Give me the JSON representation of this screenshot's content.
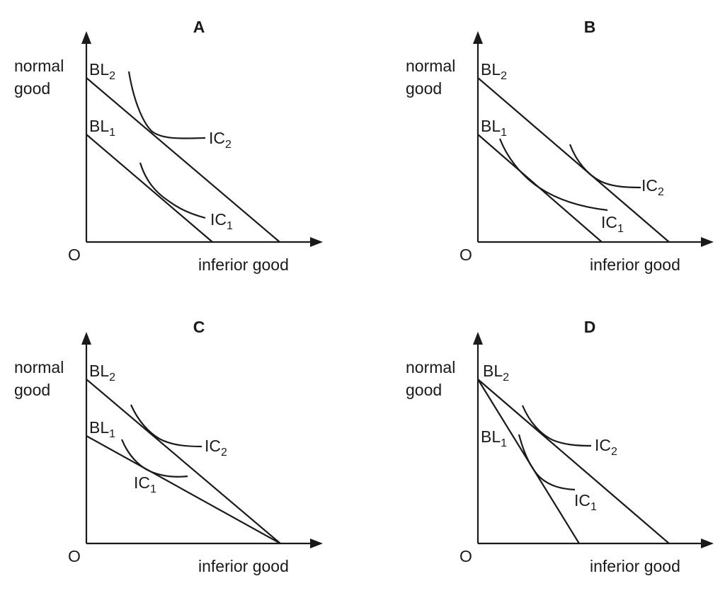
{
  "panels": [
    {
      "title": "A",
      "y_axis_label": [
        "normal",
        "good"
      ],
      "x_axis_label": "inferior good",
      "origin_label": "O",
      "budget_lines": [
        {
          "base": "BL",
          "sub": "2"
        },
        {
          "base": "BL",
          "sub": "1"
        }
      ],
      "indifference_curves": [
        {
          "base": "IC",
          "sub": "2"
        },
        {
          "base": "IC",
          "sub": "1"
        }
      ]
    },
    {
      "title": "B",
      "y_axis_label": [
        "normal",
        "good"
      ],
      "x_axis_label": "inferior good",
      "origin_label": "O",
      "budget_lines": [
        {
          "base": "BL",
          "sub": "2"
        },
        {
          "base": "BL",
          "sub": "1"
        }
      ],
      "indifference_curves": [
        {
          "base": "IC",
          "sub": "2"
        },
        {
          "base": "IC",
          "sub": "1"
        }
      ]
    },
    {
      "title": "C",
      "y_axis_label": [
        "normal",
        "good"
      ],
      "x_axis_label": "inferior good",
      "origin_label": "O",
      "budget_lines": [
        {
          "base": "BL",
          "sub": "2"
        },
        {
          "base": "BL",
          "sub": "1"
        }
      ],
      "indifference_curves": [
        {
          "base": "IC",
          "sub": "2"
        },
        {
          "base": "IC",
          "sub": "1"
        }
      ]
    },
    {
      "title": "D",
      "y_axis_label": [
        "normal",
        "good"
      ],
      "x_axis_label": "inferior good",
      "origin_label": "O",
      "budget_lines": [
        {
          "base": "BL",
          "sub": "2"
        },
        {
          "base": "BL",
          "sub": "1"
        }
      ],
      "indifference_curves": [
        {
          "base": "IC",
          "sub": "2"
        },
        {
          "base": "IC",
          "sub": "1"
        }
      ]
    }
  ]
}
